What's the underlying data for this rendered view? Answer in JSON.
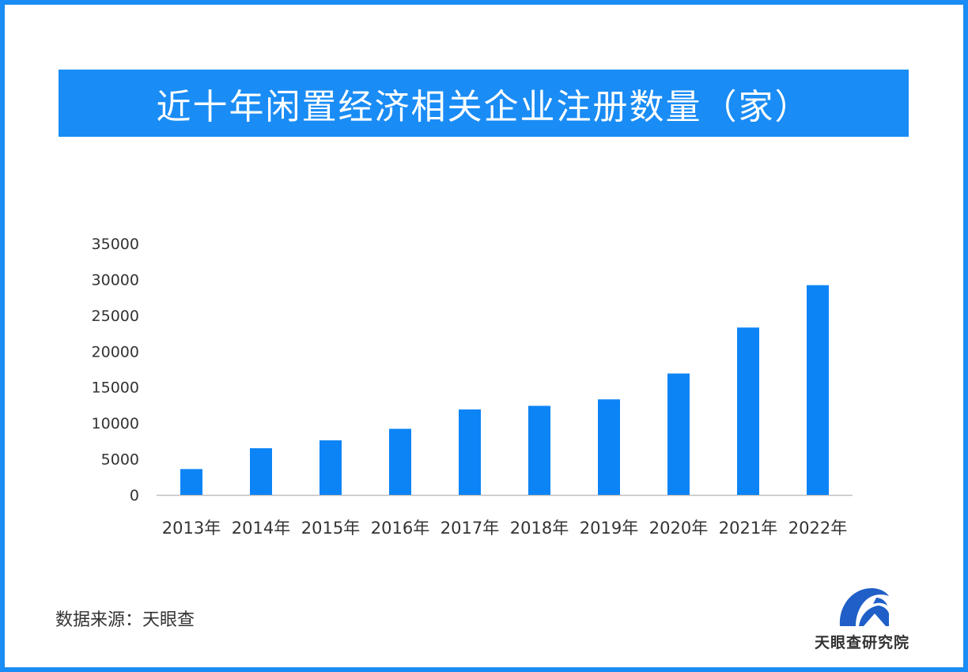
{
  "title": "近十年闲置经济相关企业注册数量（家）",
  "source": "数据来源：天眼查",
  "logo_text": "天眼查研究院",
  "colors": {
    "accent": "#1a8cf5",
    "bar": "#0d84f5",
    "axis": "#bfbfbf",
    "text": "#333333"
  },
  "chart_data": {
    "type": "bar",
    "title": "近十年闲置经济相关企业注册数量（家）",
    "categories": [
      "2013年",
      "2014年",
      "2015年",
      "2016年",
      "2017年",
      "2018年",
      "2019年",
      "2020年",
      "2021年",
      "2022年"
    ],
    "values": [
      3600,
      6500,
      7600,
      9200,
      11900,
      12400,
      13300,
      16900,
      23300,
      29200
    ],
    "yticks": [
      "0",
      "5000",
      "10000",
      "15000",
      "20000",
      "25000",
      "30000",
      "35000"
    ],
    "ylim": [
      0,
      35000
    ],
    "xlabel": "",
    "ylabel": "",
    "grid": false,
    "legend": "none"
  }
}
